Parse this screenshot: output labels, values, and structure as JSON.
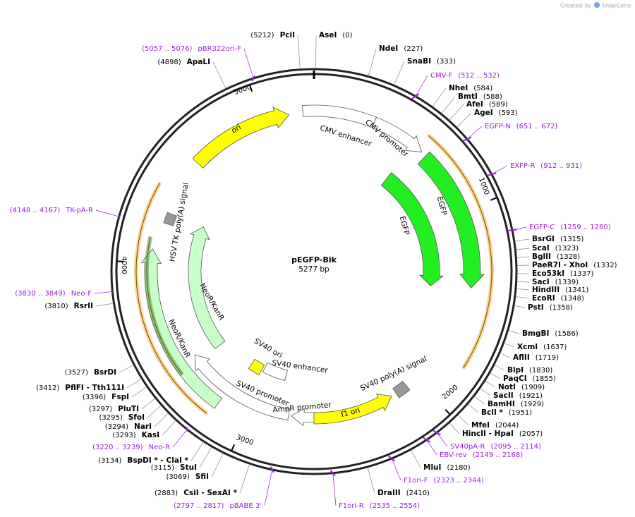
{
  "header": {
    "credit": "Created by",
    "brand": "SnapGene"
  },
  "map": {
    "name": "pEGFP-Bik",
    "length": "5277 bp",
    "ticks": [
      "1000",
      "2000",
      "3000",
      "4000",
      "5000"
    ]
  },
  "sites": [
    {
      "name": "PciI",
      "position": "(5212)"
    },
    {
      "name": "AseI",
      "position": "(0)"
    },
    {
      "name": "NdeI",
      "position": "(227)"
    },
    {
      "name": "SnaBI",
      "position": "(333)"
    },
    {
      "name": "NheI",
      "position": "(584)"
    },
    {
      "name": "BmtI",
      "position": "(588)"
    },
    {
      "name": "AfeI",
      "position": "(589)"
    },
    {
      "name": "AgeI",
      "position": "(593)"
    },
    {
      "name": "BsrGI",
      "position": "(1315)"
    },
    {
      "name": "ScaI",
      "position": "(1323)"
    },
    {
      "name": "BglII",
      "position": "(1328)"
    },
    {
      "name": "PaeR7I  -  XhoI",
      "position": "(1332)"
    },
    {
      "name": "Eco53kI",
      "position": "(1337)"
    },
    {
      "name": "SacI",
      "position": "(1339)"
    },
    {
      "name": "HindIII",
      "position": "(1341)"
    },
    {
      "name": "EcoRI",
      "position": "(1348)"
    },
    {
      "name": "PstI",
      "position": "(1358)"
    },
    {
      "name": "BmgBI",
      "position": "(1586)"
    },
    {
      "name": "XcmI",
      "position": "(1637)"
    },
    {
      "name": "AflII",
      "position": "(1719)"
    },
    {
      "name": "BlpI",
      "position": "(1830)"
    },
    {
      "name": "PaqCI",
      "position": "(1855)"
    },
    {
      "name": "NotI",
      "position": "(1909)"
    },
    {
      "name": "SacII",
      "position": "(1921)"
    },
    {
      "name": "BamHI",
      "position": "(1929)"
    },
    {
      "name": "BclI *",
      "position": "(1951)"
    },
    {
      "name": "MfeI",
      "position": "(2044)"
    },
    {
      "name": "HincII  -  HpaI",
      "position": "(2057)"
    },
    {
      "name": "MluI",
      "position": "(2180)"
    },
    {
      "name": "DraIII",
      "position": "(2410)"
    },
    {
      "name": "CsiI  -  SexAI *",
      "position": "(2883)"
    },
    {
      "name": "SfiI",
      "position": "(3069)"
    },
    {
      "name": "StuI",
      "position": "(3115)"
    },
    {
      "name": "BspDI *  -  ClaI *",
      "position": "(3134)"
    },
    {
      "name": "KasI",
      "position": "(3293)"
    },
    {
      "name": "NarI",
      "position": "(3294)"
    },
    {
      "name": "SfoI",
      "position": "(3295)"
    },
    {
      "name": "PluTI",
      "position": "(3297)"
    },
    {
      "name": "FspI",
      "position": "(3396)"
    },
    {
      "name": "PflFI  -  Tth111I",
      "position": "(3412)"
    },
    {
      "name": "BsrDI",
      "position": "(3527)"
    },
    {
      "name": "RsrII",
      "position": "(3810)"
    },
    {
      "name": "ApaLI",
      "position": "(4898)"
    }
  ],
  "primers": [
    {
      "name": "pBR322ori-F",
      "range": "(5057 .. 5076)"
    },
    {
      "name": "CMV-F",
      "range": "(512 .. 532)"
    },
    {
      "name": "EGFP-N",
      "range": "(651 .. 672)"
    },
    {
      "name": "EXFP-R",
      "range": "(912 .. 931)"
    },
    {
      "name": "EGFP-C",
      "range": "(1259 .. 1280)"
    },
    {
      "name": "SV40pA-R",
      "range": "(2095 .. 2114)"
    },
    {
      "name": "EBV-rev",
      "range": "(2149 .. 2168)"
    },
    {
      "name": "F1ori-F",
      "range": "(2323 .. 2344)"
    },
    {
      "name": "F1ori-R",
      "range": "(2535 .. 2554)"
    },
    {
      "name": "pBABE 3'",
      "range": "(2797 .. 2817)"
    },
    {
      "name": "Neo-R",
      "range": "(3220 .. 3239)"
    },
    {
      "name": "Neo-F",
      "range": "(3830 .. 3849)"
    },
    {
      "name": "TK-pA-R",
      "range": "(4148 .. 4167)"
    }
  ],
  "features": [
    {
      "label": "ori"
    },
    {
      "label": "CMV enhancer"
    },
    {
      "label": "CMV promoter"
    },
    {
      "label": "EGFP"
    },
    {
      "label": "EGFP"
    },
    {
      "label": "SV40 ori"
    },
    {
      "label": "SV40 enhancer"
    },
    {
      "label": "SV40 promoter"
    },
    {
      "label": "AmpR promoter"
    },
    {
      "label": "f1 ori"
    },
    {
      "label": "SV40 poly(A) signal"
    },
    {
      "label": "NeoR/KanR"
    },
    {
      "label": "NeoR/KanR"
    },
    {
      "label": "HSV TK poly(A) signal"
    }
  ]
}
